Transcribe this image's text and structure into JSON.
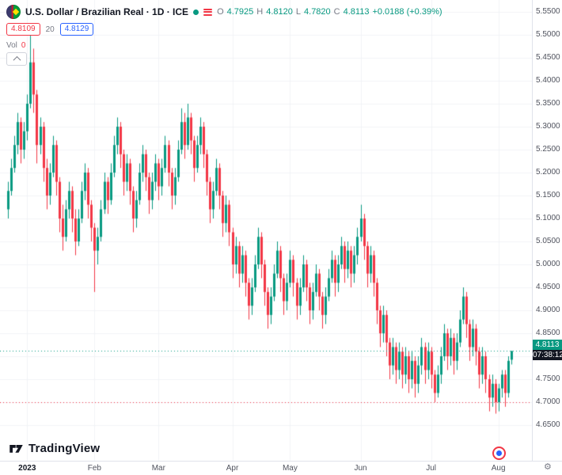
{
  "header": {
    "symbol_title": "U.S. Dollar / Brazilian Real · 1D · ICE",
    "ohlc": {
      "o_label": "O",
      "o": "4.7925",
      "h_label": "H",
      "h": "4.8120",
      "l_label": "L",
      "l": "4.7820",
      "c_label": "C",
      "c": "4.8113",
      "change": "+0.0188 (+0.39%)"
    },
    "badges": {
      "red_price": "4.8109",
      "ma_length": "20",
      "ma_value": "4.8129"
    },
    "volume_label": "Vol",
    "volume_value": "0"
  },
  "price_scale": {
    "labels": [
      "5.5500",
      "5.5000",
      "5.4500",
      "5.4000",
      "5.3500",
      "5.3000",
      "5.2500",
      "5.2000",
      "5.1500",
      "5.1000",
      "5.0500",
      "5.0000",
      "4.9500",
      "4.9000",
      "4.8500",
      "4.8000",
      "4.7500",
      "4.7000",
      "4.6500"
    ],
    "last_price": "4.8113",
    "countdown": "07:38:12"
  },
  "footer": {
    "brand": "TradingView"
  },
  "colors": {
    "up": "#089981",
    "down": "#f23645",
    "grid": "#f2f3f7",
    "axis_border": "#e0e3eb"
  },
  "chart_data": {
    "type": "candlestick",
    "title": "U.S. Dollar / Brazilian Real",
    "timeframe": "1D",
    "exchange": "ICE",
    "ylim": [
      4.65,
      5.55
    ],
    "y_tick_step": 0.05,
    "legend_position": "top-left",
    "grid": true,
    "months": [
      {
        "label": "2023",
        "index": 6,
        "year": true
      },
      {
        "label": "Feb",
        "index": 27
      },
      {
        "label": "Mar",
        "index": 47
      },
      {
        "label": "Apr",
        "index": 70
      },
      {
        "label": "May",
        "index": 88
      },
      {
        "label": "Jun",
        "index": 110
      },
      {
        "label": "Jul",
        "index": 132
      },
      {
        "label": "Aug",
        "index": 153
      }
    ],
    "dotted_lines": [
      {
        "price": 4.8113,
        "color": "#089981"
      },
      {
        "price": 4.7,
        "color": "#f23645"
      }
    ],
    "last": {
      "open": 4.7925,
      "high": 4.812,
      "low": 4.782,
      "close": 4.8113,
      "change": 0.0188,
      "change_pct": 0.39
    },
    "candles": [
      [
        5.12,
        5.18,
        5.1,
        5.16
      ],
      [
        5.16,
        5.23,
        5.15,
        5.21
      ],
      [
        5.21,
        5.28,
        5.2,
        5.26
      ],
      [
        5.26,
        5.33,
        5.24,
        5.31
      ],
      [
        5.31,
        5.32,
        5.22,
        5.25
      ],
      [
        5.25,
        5.31,
        5.23,
        5.29
      ],
      [
        5.29,
        5.37,
        5.27,
        5.35
      ],
      [
        5.35,
        5.5,
        5.34,
        5.44
      ],
      [
        5.44,
        5.47,
        5.33,
        5.37
      ],
      [
        5.37,
        5.38,
        5.22,
        5.26
      ],
      [
        5.26,
        5.32,
        5.24,
        5.3
      ],
      [
        5.3,
        5.31,
        5.18,
        5.21
      ],
      [
        5.21,
        5.23,
        5.12,
        5.15
      ],
      [
        5.15,
        5.22,
        5.13,
        5.2
      ],
      [
        5.2,
        5.28,
        5.19,
        5.26
      ],
      [
        5.26,
        5.27,
        5.15,
        5.18
      ],
      [
        5.18,
        5.19,
        5.07,
        5.1
      ],
      [
        5.1,
        5.13,
        5.03,
        5.06
      ],
      [
        5.06,
        5.14,
        5.05,
        5.12
      ],
      [
        5.12,
        5.18,
        5.1,
        5.16
      ],
      [
        5.16,
        5.17,
        5.07,
        5.1
      ],
      [
        5.1,
        5.12,
        5.02,
        5.05
      ],
      [
        5.05,
        5.12,
        5.04,
        5.1
      ],
      [
        5.1,
        5.18,
        5.09,
        5.16
      ],
      [
        5.16,
        5.22,
        5.14,
        5.2
      ],
      [
        5.2,
        5.21,
        5.1,
        5.13
      ],
      [
        5.13,
        5.14,
        5.05,
        5.08
      ],
      [
        5.08,
        5.09,
        4.94,
        5.03
      ],
      [
        5.03,
        5.08,
        5.0,
        5.06
      ],
      [
        5.06,
        5.14,
        5.05,
        5.12
      ],
      [
        5.12,
        5.2,
        5.11,
        5.18
      ],
      [
        5.18,
        5.19,
        5.11,
        5.14
      ],
      [
        5.14,
        5.22,
        5.13,
        5.2
      ],
      [
        5.2,
        5.28,
        5.19,
        5.26
      ],
      [
        5.26,
        5.32,
        5.24,
        5.3
      ],
      [
        5.3,
        5.31,
        5.21,
        5.24
      ],
      [
        5.24,
        5.25,
        5.15,
        5.18
      ],
      [
        5.18,
        5.24,
        5.16,
        5.22
      ],
      [
        5.22,
        5.23,
        5.13,
        5.16
      ],
      [
        5.16,
        5.17,
        5.07,
        5.1
      ],
      [
        5.1,
        5.16,
        5.08,
        5.14
      ],
      [
        5.14,
        5.22,
        5.13,
        5.2
      ],
      [
        5.2,
        5.26,
        5.18,
        5.24
      ],
      [
        5.24,
        5.25,
        5.16,
        5.19
      ],
      [
        5.19,
        5.2,
        5.11,
        5.14
      ],
      [
        5.14,
        5.2,
        5.12,
        5.18
      ],
      [
        5.18,
        5.24,
        5.16,
        5.22
      ],
      [
        5.22,
        5.23,
        5.14,
        5.17
      ],
      [
        5.17,
        5.23,
        5.15,
        5.21
      ],
      [
        5.21,
        5.28,
        5.2,
        5.26
      ],
      [
        5.26,
        5.27,
        5.17,
        5.2
      ],
      [
        5.2,
        5.21,
        5.12,
        5.15
      ],
      [
        5.15,
        5.21,
        5.13,
        5.19
      ],
      [
        5.19,
        5.27,
        5.18,
        5.25
      ],
      [
        5.25,
        5.34,
        5.24,
        5.31
      ],
      [
        5.31,
        5.33,
        5.23,
        5.26
      ],
      [
        5.26,
        5.35,
        5.25,
        5.32
      ],
      [
        5.32,
        5.33,
        5.24,
        5.27
      ],
      [
        5.27,
        5.28,
        5.18,
        5.21
      ],
      [
        5.21,
        5.28,
        5.2,
        5.26
      ],
      [
        5.26,
        5.32,
        5.24,
        5.3
      ],
      [
        5.3,
        5.31,
        5.21,
        5.24
      ],
      [
        5.24,
        5.25,
        5.15,
        5.18
      ],
      [
        5.18,
        5.19,
        5.09,
        5.12
      ],
      [
        5.12,
        5.18,
        5.1,
        5.16
      ],
      [
        5.16,
        5.23,
        5.15,
        5.21
      ],
      [
        5.21,
        5.22,
        5.12,
        5.15
      ],
      [
        5.15,
        5.16,
        5.06,
        5.09
      ],
      [
        5.09,
        5.15,
        5.07,
        5.13
      ],
      [
        5.13,
        5.14,
        5.04,
        5.07
      ],
      [
        5.07,
        5.08,
        4.97,
        5.0
      ],
      [
        5.0,
        5.06,
        4.98,
        5.04
      ],
      [
        5.04,
        5.05,
        4.95,
        4.98
      ],
      [
        4.98,
        5.04,
        4.96,
        5.02
      ],
      [
        5.02,
        5.03,
        4.93,
        4.96
      ],
      [
        4.96,
        4.97,
        4.88,
        4.91
      ],
      [
        4.91,
        4.97,
        4.89,
        4.95
      ],
      [
        4.95,
        5.02,
        4.94,
        5.0
      ],
      [
        5.0,
        5.08,
        4.99,
        5.06
      ],
      [
        5.06,
        5.07,
        4.97,
        5.0
      ],
      [
        5.0,
        5.01,
        4.91,
        4.94
      ],
      [
        4.94,
        4.95,
        4.86,
        4.89
      ],
      [
        4.89,
        4.95,
        4.87,
        4.93
      ],
      [
        4.93,
        5.0,
        4.92,
        4.98
      ],
      [
        4.98,
        5.05,
        4.97,
        5.03
      ],
      [
        5.03,
        5.04,
        4.94,
        4.97
      ],
      [
        4.97,
        4.98,
        4.89,
        4.92
      ],
      [
        4.92,
        4.98,
        4.9,
        4.96
      ],
      [
        4.96,
        5.03,
        4.95,
        5.01
      ],
      [
        5.01,
        5.02,
        4.93,
        4.96
      ],
      [
        4.96,
        4.97,
        4.88,
        4.91
      ],
      [
        4.91,
        4.97,
        4.89,
        4.95
      ],
      [
        4.95,
        5.02,
        4.94,
        5.0
      ],
      [
        5.0,
        5.01,
        4.92,
        4.95
      ],
      [
        4.95,
        4.96,
        4.87,
        4.9
      ],
      [
        4.9,
        4.96,
        4.88,
        4.94
      ],
      [
        4.94,
        5.0,
        4.93,
        4.98
      ],
      [
        4.98,
        4.99,
        4.9,
        4.93
      ],
      [
        4.93,
        4.94,
        4.86,
        4.89
      ],
      [
        4.89,
        4.95,
        4.87,
        4.93
      ],
      [
        4.93,
        4.99,
        4.92,
        4.97
      ],
      [
        4.97,
        5.03,
        4.96,
        5.01
      ],
      [
        5.01,
        5.02,
        4.93,
        4.96
      ],
      [
        4.96,
        5.02,
        4.94,
        5.0
      ],
      [
        5.0,
        5.06,
        4.99,
        5.04
      ],
      [
        5.04,
        5.05,
        4.96,
        4.99
      ],
      [
        4.99,
        5.05,
        4.97,
        5.03
      ],
      [
        5.03,
        5.04,
        4.95,
        4.98
      ],
      [
        4.98,
        5.04,
        4.96,
        5.02
      ],
      [
        5.02,
        5.08,
        5.0,
        5.06
      ],
      [
        5.06,
        5.13,
        5.05,
        5.1
      ],
      [
        5.1,
        5.11,
        5.01,
        5.04
      ],
      [
        5.04,
        5.05,
        4.95,
        4.98
      ],
      [
        4.98,
        5.04,
        4.96,
        5.02
      ],
      [
        5.02,
        5.03,
        4.93,
        4.96
      ],
      [
        4.96,
        4.97,
        4.87,
        4.9
      ],
      [
        4.9,
        4.91,
        4.82,
        4.85
      ],
      [
        4.85,
        4.91,
        4.83,
        4.89
      ],
      [
        4.89,
        4.9,
        4.8,
        4.83
      ],
      [
        4.83,
        4.84,
        4.75,
        4.78
      ],
      [
        4.78,
        4.84,
        4.76,
        4.82
      ],
      [
        4.82,
        4.83,
        4.74,
        4.77
      ],
      [
        4.77,
        4.83,
        4.75,
        4.81
      ],
      [
        4.81,
        4.82,
        4.73,
        4.76
      ],
      [
        4.76,
        4.82,
        4.74,
        4.8
      ],
      [
        4.8,
        4.81,
        4.72,
        4.75
      ],
      [
        4.75,
        4.81,
        4.73,
        4.79
      ],
      [
        4.79,
        4.8,
        4.71,
        4.74
      ],
      [
        4.74,
        4.8,
        4.72,
        4.78
      ],
      [
        4.78,
        4.84,
        4.76,
        4.82
      ],
      [
        4.82,
        4.83,
        4.74,
        4.77
      ],
      [
        4.77,
        4.83,
        4.75,
        4.81
      ],
      [
        4.81,
        4.82,
        4.73,
        4.76
      ],
      [
        4.76,
        4.77,
        4.7,
        4.72
      ],
      [
        4.72,
        4.78,
        4.71,
        4.76
      ],
      [
        4.76,
        4.82,
        4.74,
        4.8
      ],
      [
        4.8,
        4.87,
        4.79,
        4.85
      ],
      [
        4.85,
        4.86,
        4.77,
        4.8
      ],
      [
        4.8,
        4.86,
        4.78,
        4.84
      ],
      [
        4.84,
        4.85,
        4.76,
        4.79
      ],
      [
        4.79,
        4.85,
        4.77,
        4.83
      ],
      [
        4.83,
        4.9,
        4.82,
        4.88
      ],
      [
        4.88,
        4.95,
        4.87,
        4.93
      ],
      [
        4.93,
        4.94,
        4.84,
        4.87
      ],
      [
        4.87,
        4.88,
        4.79,
        4.82
      ],
      [
        4.82,
        4.88,
        4.8,
        4.86
      ],
      [
        4.86,
        4.87,
        4.78,
        4.81
      ],
      [
        4.81,
        4.82,
        4.73,
        4.76
      ],
      [
        4.76,
        4.82,
        4.74,
        4.8
      ],
      [
        4.8,
        4.81,
        4.72,
        4.75
      ],
      [
        4.75,
        4.76,
        4.68,
        4.71
      ],
      [
        4.71,
        4.76,
        4.69,
        4.74
      ],
      [
        4.74,
        4.75,
        4.675,
        4.7
      ],
      [
        4.7,
        4.74,
        4.68,
        4.73
      ],
      [
        4.73,
        4.77,
        4.71,
        4.76
      ],
      [
        4.76,
        4.77,
        4.69,
        4.72
      ],
      [
        4.72,
        4.8,
        4.71,
        4.79
      ],
      [
        4.7925,
        4.812,
        4.782,
        4.8113
      ]
    ]
  }
}
